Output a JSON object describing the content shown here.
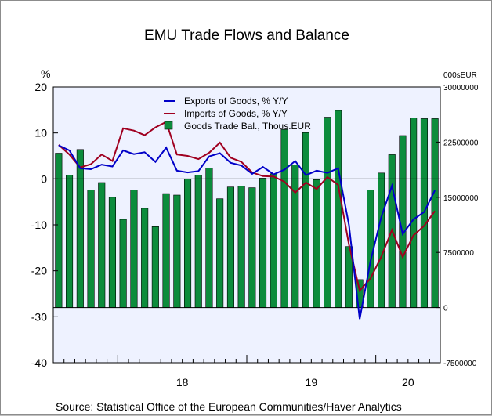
{
  "chart_data": {
    "type": "bar+line",
    "title": "EMU Trade Flows and Balance",
    "left_unit": "%",
    "right_unit": "000sEUR",
    "left_ylim": [
      -40,
      20
    ],
    "left_ticks": [
      "20",
      "10",
      "0",
      "-10",
      "-20",
      "-30",
      "-40"
    ],
    "right_ylim": [
      -7500000,
      30000000
    ],
    "right_ticks": [
      "30000000",
      "22500000",
      "15000000",
      "7500000",
      "0",
      "-7500000"
    ],
    "x_period": [
      "2017-07",
      "2020-06"
    ],
    "x_year_labels": [
      "18",
      "19",
      "20"
    ],
    "legend": [
      "Exports of Goods, % Y/Y",
      "Imports of Goods, % Y/Y",
      "Goods Trade Bal., Thous.EUR"
    ],
    "source": "Source:  Statistical Office of the European Communities/Haver Analytics",
    "colors": {
      "exports": "#0000c8",
      "imports": "#a00020",
      "balance": "#0c8c3c",
      "plot_bg": "#eef2ff"
    },
    "categories": [
      "2017-07",
      "2017-08",
      "2017-09",
      "2017-10",
      "2017-11",
      "2017-12",
      "2018-01",
      "2018-02",
      "2018-03",
      "2018-04",
      "2018-05",
      "2018-06",
      "2018-07",
      "2018-08",
      "2018-09",
      "2018-10",
      "2018-11",
      "2018-12",
      "2019-01",
      "2019-02",
      "2019-03",
      "2019-04",
      "2019-05",
      "2019-06",
      "2019-07",
      "2019-08",
      "2019-09",
      "2019-10",
      "2019-11",
      "2019-12",
      "2020-01",
      "2020-02",
      "2020-03",
      "2020-04",
      "2020-05",
      "2020-06"
    ],
    "series": [
      {
        "name": "Exports of Goods, % Y/Y",
        "values": [
          7.3,
          6.2,
          2.3,
          2.1,
          3.1,
          2.7,
          6.2,
          5.4,
          5.8,
          3.7,
          6.8,
          1.8,
          1.4,
          1.7,
          4.9,
          5.6,
          3.5,
          2.9,
          1.1,
          2.6,
          1.0,
          2.0,
          3.9,
          0.8,
          1.8,
          1.3,
          2.3,
          -10.0,
          -30.5,
          -18.0,
          -8.4,
          -1.5,
          -12.0,
          -8.8,
          -7.2,
          -2.5
        ]
      },
      {
        "name": "Imports of Goods, % Y/Y",
        "values": [
          7.4,
          5.3,
          2.5,
          3.2,
          5.3,
          3.9,
          11.0,
          10.5,
          9.5,
          11.2,
          12.4,
          5.3,
          5.0,
          4.3,
          5.7,
          7.9,
          4.6,
          3.7,
          1.4,
          0.6,
          0.5,
          -0.6,
          -3.0,
          -0.8,
          -2.2,
          0.4,
          -1.3,
          -14.3,
          -24.3,
          -21.7,
          -17.0,
          -11.1,
          -17.0,
          -12.3,
          -10.2,
          -7.0
        ]
      },
      {
        "name": "Goods Trade Bal., Thous.EUR",
        "values": [
          21000000,
          18000000,
          21500000,
          16000000,
          17000000,
          15000000,
          12000000,
          16000000,
          13500000,
          11000000,
          15500000,
          15300000,
          17500000,
          18000000,
          19000000,
          14800000,
          16400000,
          16500000,
          16300000,
          17600000,
          18200000,
          24200000,
          19400000,
          23800000,
          17400000,
          25900000,
          26800000,
          8300000,
          3800000,
          16000000,
          18300000,
          20800000,
          23400000,
          25800000,
          25700000,
          25700000
        ]
      }
    ]
  }
}
